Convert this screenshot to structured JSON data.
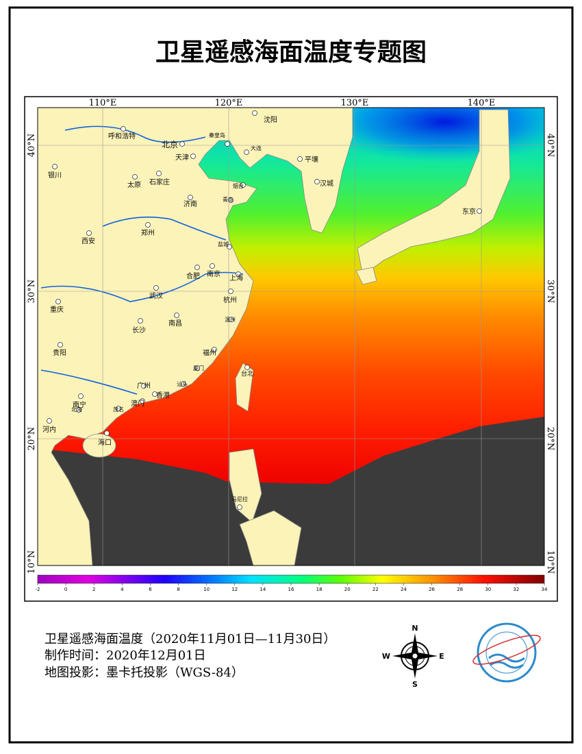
{
  "title": "卫星遥感海面温度专题图",
  "map": {
    "longitude_labels": [
      "110°E",
      "120°E",
      "130°E",
      "140°E"
    ],
    "latitude_labels": [
      "40°N",
      "30°N",
      "20°N",
      "10°N"
    ],
    "cities": [
      "沈阳",
      "秦皇岛",
      "呼和浩特",
      "北京",
      "天津",
      "大连",
      "平壤",
      "银川",
      "太原",
      "石家庄",
      "烟台",
      "汉城",
      "济南",
      "青岛",
      "东京",
      "郑州",
      "西安",
      "盐城",
      "合肥",
      "南京",
      "上海",
      "武汉",
      "杭州",
      "重庆",
      "长沙",
      "南昌",
      "温州",
      "贵阳",
      "福州",
      "厦门",
      "台北",
      "广州",
      "汕头",
      "香港",
      "南宁",
      "澳门",
      "北海",
      "茂名",
      "河内",
      "海口",
      "马尼拉"
    ]
  },
  "colorbar": {
    "min": -2,
    "max": 34,
    "ticks": [
      -2,
      0,
      2,
      4,
      6,
      8,
      10,
      12,
      14,
      16,
      18,
      20,
      22,
      24,
      26,
      28,
      30,
      32,
      34
    ]
  },
  "footer": {
    "lines": [
      "卫星遥感海面温度（2020年11月01日—11月30日）",
      "制作时间：2020年12月01日",
      "地图投影：墨卡托投影（WGS-84）"
    ]
  },
  "compass": {
    "n": "N",
    "e": "E",
    "s": "S",
    "w": "W"
  }
}
